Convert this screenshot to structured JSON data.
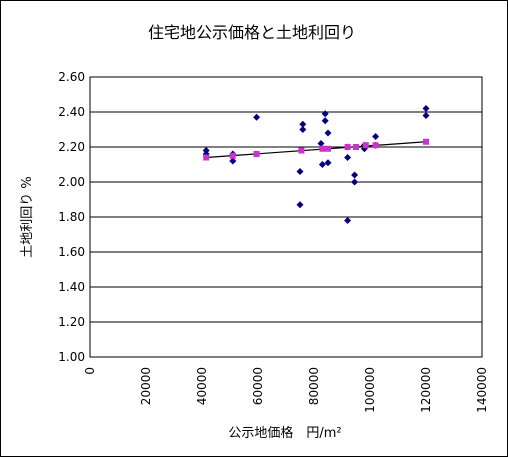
{
  "chart_data": {
    "type": "scatter",
    "title": "住宅地公示価格と土地利回り",
    "xlabel": "公示地価格　円/m²",
    "ylabel": "土地利回り %",
    "xlim": [
      0,
      140000
    ],
    "ylim": [
      1.0,
      2.6
    ],
    "x_ticks": [
      "0",
      "20000",
      "40000",
      "60000",
      "80000",
      "100000",
      "120000",
      "140000"
    ],
    "y_ticks": [
      "1.00",
      "1.20",
      "1.40",
      "1.60",
      "1.80",
      "2.00",
      "2.20",
      "2.40",
      "2.60"
    ],
    "grid": {
      "horizontal": true,
      "vertical": false
    },
    "series": [
      {
        "marker": "diamond",
        "color": "#000080",
        "points": [
          [
            41500,
            2.18
          ],
          [
            41500,
            2.16
          ],
          [
            51000,
            2.16
          ],
          [
            51000,
            2.12
          ],
          [
            59500,
            2.37
          ],
          [
            75000,
            2.06
          ],
          [
            75000,
            1.87
          ],
          [
            76000,
            2.33
          ],
          [
            76000,
            2.3
          ],
          [
            82500,
            2.22
          ],
          [
            83000,
            2.1
          ],
          [
            84000,
            2.39
          ],
          [
            84000,
            2.35
          ],
          [
            85000,
            2.28
          ],
          [
            85000,
            2.11
          ],
          [
            92000,
            2.2
          ],
          [
            92000,
            2.14
          ],
          [
            92000,
            1.78
          ],
          [
            94500,
            2.04
          ],
          [
            94500,
            2.0
          ],
          [
            98000,
            2.21
          ],
          [
            98000,
            2.19
          ],
          [
            102000,
            2.26
          ],
          [
            102000,
            2.21
          ],
          [
            120000,
            2.42
          ],
          [
            120000,
            2.38
          ]
        ]
      },
      {
        "marker": "square",
        "color": "#cc33cc",
        "points": [
          [
            41500,
            2.14
          ],
          [
            51000,
            2.15
          ],
          [
            59500,
            2.16
          ],
          [
            75500,
            2.18
          ],
          [
            83000,
            2.19
          ],
          [
            85000,
            2.19
          ],
          [
            92000,
            2.2
          ],
          [
            95000,
            2.2
          ],
          [
            98500,
            2.21
          ],
          [
            102000,
            2.21
          ],
          [
            120000,
            2.23
          ]
        ]
      }
    ],
    "trendline": {
      "color": "#000000",
      "x": [
        41500,
        120000
      ],
      "y": [
        2.14,
        2.23
      ]
    }
  }
}
